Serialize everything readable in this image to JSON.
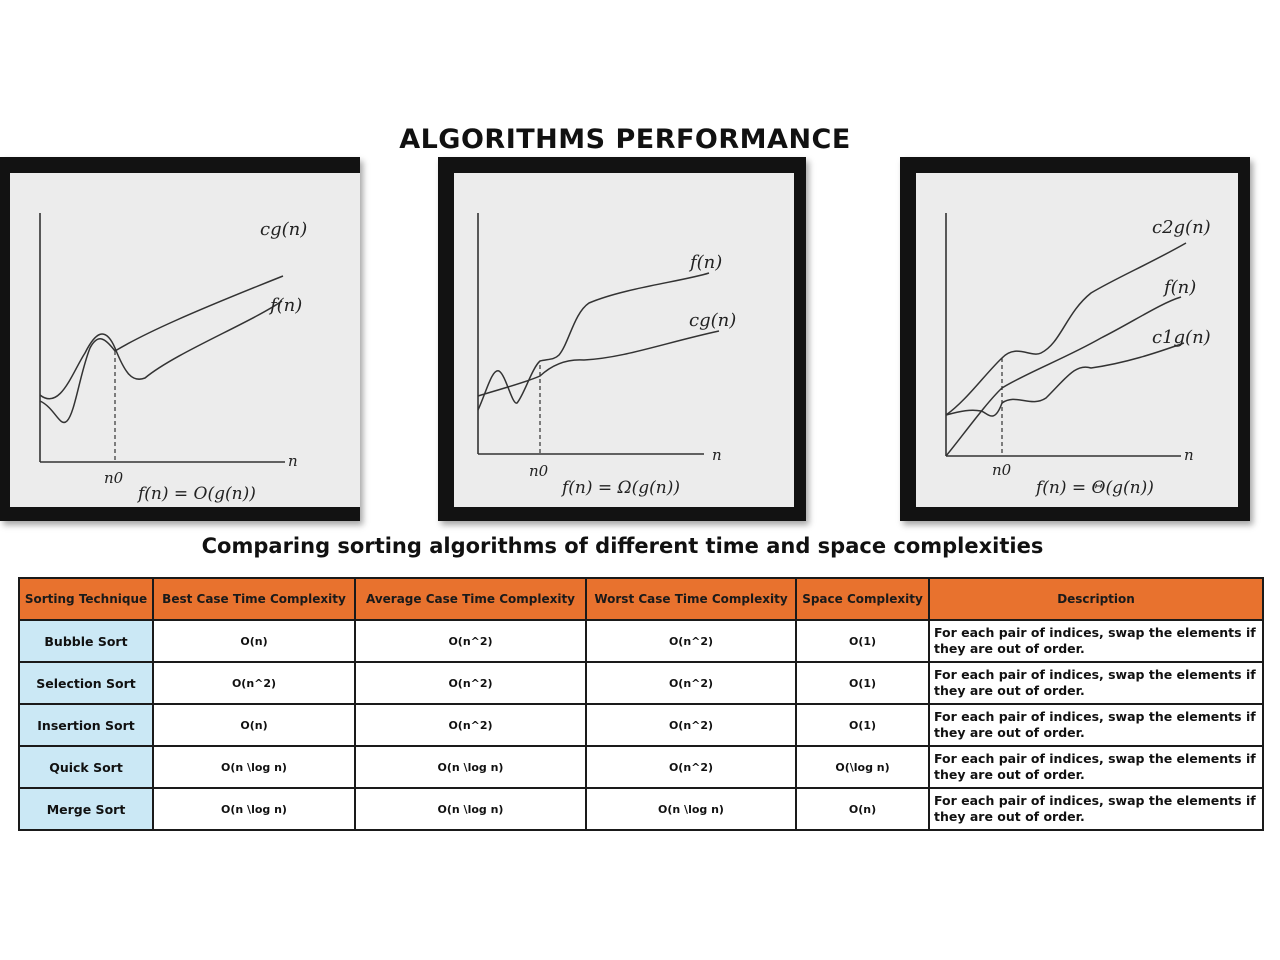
{
  "title": "ALGORITHMS PERFORMANCE",
  "graphs": [
    {
      "curve_upper": "cg(n)",
      "curve_lower": "f(n)",
      "axis_label": "n",
      "threshold_label": "n0",
      "caption": "f(n) = O(g(n))"
    },
    {
      "curve_upper": "f(n)",
      "curve_lower": "cg(n)",
      "axis_label": "n",
      "threshold_label": "n0",
      "caption": "f(n) = Ω(g(n))"
    },
    {
      "curve_upper": "c2g(n)",
      "curve_middle": "f(n)",
      "curve_lower": "c1g(n)",
      "axis_label": "n",
      "threshold_label": "n0",
      "caption": "f(n) = Θ(g(n))"
    }
  ],
  "subtitle": "Comparing sorting algorithms of different time and space complexities",
  "table": {
    "headers": [
      "Sorting Technique",
      "Best Case Time Complexity",
      "Average Case Time Complexity",
      "Worst Case Time Complexity",
      "Space Complexity",
      "Description"
    ],
    "rows": [
      [
        "Bubble Sort",
        "O(n)",
        "O(n^2)",
        "O(n^2)",
        "O(1)",
        "For each pair of indices, swap the elements if they are out of order."
      ],
      [
        "Selection Sort",
        "O(n^2)",
        "O(n^2)",
        "O(n^2)",
        "O(1)",
        "For each pair of indices, swap the elements if they are out of order."
      ],
      [
        "Insertion Sort",
        "O(n)",
        "O(n^2)",
        "O(n^2)",
        "O(1)",
        "For each pair of indices, swap the elements if they are out of order."
      ],
      [
        "Quick Sort",
        "O(n \\log n)",
        "O(n \\log n)",
        "O(n^2)",
        "O(\\log n)",
        "For each pair of indices, swap the elements if they are out of order."
      ],
      [
        "Merge Sort",
        "O(n \\log n)",
        "O(n \\log n)",
        "O(n \\log n)",
        "O(n)",
        "For each pair of indices, swap the elements if they are out of order."
      ]
    ]
  },
  "colors": {
    "header_bg": "#e8722e",
    "technique_bg": "#cbe8f5",
    "frame": "#121212"
  }
}
